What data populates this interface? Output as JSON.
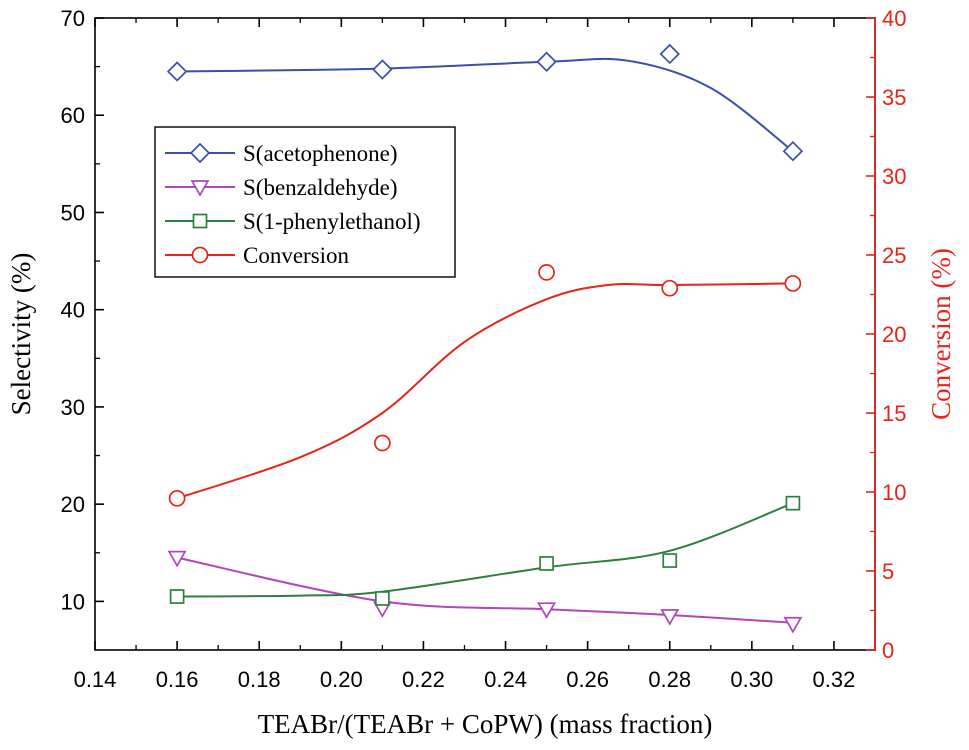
{
  "chart_data": {
    "type": "line",
    "title": "",
    "xlabel": "TEABr/(TEABr + CoPW) (mass fraction)",
    "ylabel": "Selectivity (%)",
    "y2label": "Conversion (%)",
    "xlim": [
      0.14,
      0.33
    ],
    "ylim": [
      5,
      70
    ],
    "y2lim": [
      0,
      40
    ],
    "xticks": [
      "0.14",
      "0.16",
      "0.18",
      "0.20",
      "0.22",
      "0.24",
      "0.26",
      "0.28",
      "0.30",
      "0.32"
    ],
    "yticks": [
      "10",
      "20",
      "30",
      "40",
      "50",
      "60",
      "70"
    ],
    "y2ticks": [
      "0",
      "5",
      "10",
      "15",
      "20",
      "25",
      "30",
      "35",
      "40"
    ],
    "legend_position": "upper-left",
    "x": [
      0.16,
      0.21,
      0.25,
      0.28,
      0.31
    ],
    "series": [
      {
        "name": "S(acetophenone)",
        "axis": "left",
        "marker": "diamond",
        "color": "#3a4fa8",
        "values": [
          64.5,
          64.7,
          65.5,
          66.3,
          56.3
        ],
        "curve": [
          [
            0.16,
            64.5
          ],
          [
            0.21,
            64.8
          ],
          [
            0.25,
            65.5
          ],
          [
            0.27,
            65.6
          ],
          [
            0.29,
            62.8
          ],
          [
            0.31,
            56.3
          ]
        ]
      },
      {
        "name": "S(benzaldehyde)",
        "axis": "left",
        "marker": "triangle-down",
        "color": "#b146b8",
        "values": [
          14.5,
          9.3,
          9.2,
          8.5,
          7.7
        ],
        "curve": [
          [
            0.16,
            14.5
          ],
          [
            0.21,
            10.0
          ],
          [
            0.25,
            9.2
          ],
          [
            0.28,
            8.6
          ],
          [
            0.31,
            7.8
          ]
        ]
      },
      {
        "name": "S(1-phenylethanol)",
        "axis": "left",
        "marker": "square",
        "color": "#2f7f3d",
        "values": [
          10.5,
          10.3,
          13.9,
          14.2,
          20.1
        ],
        "curve": [
          [
            0.16,
            10.5
          ],
          [
            0.19,
            10.6
          ],
          [
            0.21,
            11.0
          ],
          [
            0.25,
            13.5
          ],
          [
            0.28,
            15.2
          ],
          [
            0.31,
            20.1
          ]
        ]
      },
      {
        "name": "Conversion",
        "axis": "right",
        "marker": "circle",
        "color": "#e8231a",
        "values": [
          9.6,
          13.1,
          23.9,
          22.9,
          23.2
        ],
        "curve": [
          [
            0.16,
            9.6
          ],
          [
            0.19,
            12.2
          ],
          [
            0.21,
            15.0
          ],
          [
            0.23,
            19.5
          ],
          [
            0.25,
            22.2
          ],
          [
            0.265,
            23.1
          ],
          [
            0.28,
            23.1
          ],
          [
            0.31,
            23.2
          ]
        ]
      }
    ]
  }
}
